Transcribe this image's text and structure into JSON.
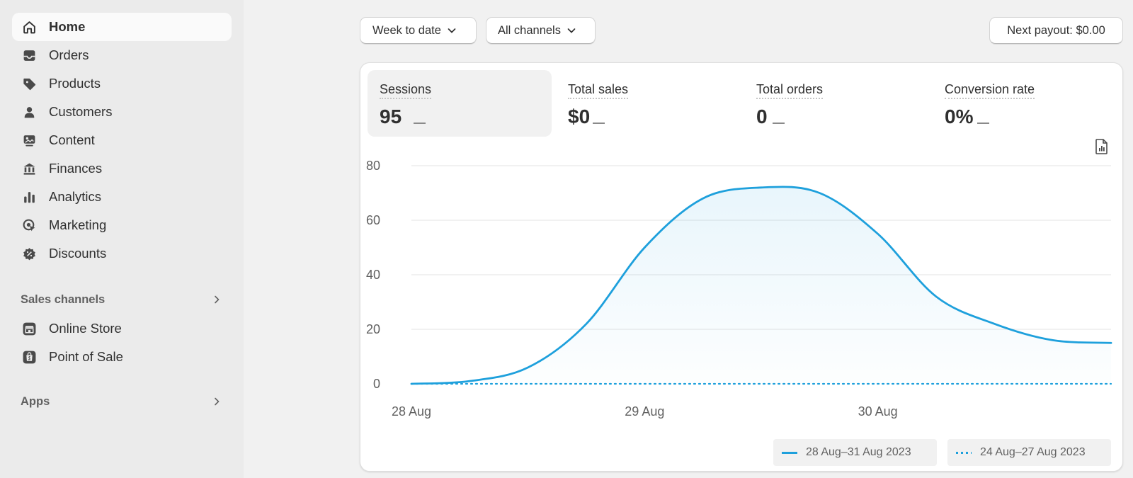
{
  "sidebar": {
    "items": [
      {
        "label": "Home",
        "icon": "home-icon",
        "active": true
      },
      {
        "label": "Orders",
        "icon": "inbox-icon"
      },
      {
        "label": "Products",
        "icon": "tag-icon"
      },
      {
        "label": "Customers",
        "icon": "person-icon"
      },
      {
        "label": "Content",
        "icon": "image-icon"
      },
      {
        "label": "Finances",
        "icon": "bank-icon"
      },
      {
        "label": "Analytics",
        "icon": "bar-chart-icon"
      },
      {
        "label": "Marketing",
        "icon": "target-icon"
      },
      {
        "label": "Discounts",
        "icon": "discount-icon"
      }
    ],
    "sales_channels": {
      "label": "Sales channels",
      "items": [
        {
          "label": "Online Store",
          "icon": "store-icon"
        },
        {
          "label": "Point of Sale",
          "icon": "shopping-bag-icon"
        }
      ]
    },
    "apps": {
      "label": "Apps"
    }
  },
  "toolbar": {
    "date_range": "Week to date",
    "channels": "All channels",
    "payout": "Next payout: $0.00"
  },
  "metrics": [
    {
      "label": "Sessions",
      "value": "95",
      "active": true
    },
    {
      "label": "Total sales",
      "value": "$0"
    },
    {
      "label": "Total orders",
      "value": "0"
    },
    {
      "label": "Conversion rate",
      "value": "0%"
    }
  ],
  "chart_data": {
    "type": "line",
    "title": "Sessions",
    "x_ticks": [
      "28 Aug",
      "29 Aug",
      "30 Aug"
    ],
    "ylim": [
      0,
      80
    ],
    "y_ticks": [
      0,
      20,
      40,
      60,
      80
    ],
    "grid": true,
    "series": [
      {
        "name": "28 Aug–31 Aug 2023",
        "style": "solid",
        "color": "#1ea0dc",
        "x": [
          0,
          0.25,
          0.5,
          0.75,
          1.0,
          1.25,
          1.5,
          1.75,
          2.0,
          2.25,
          2.5,
          2.75,
          3.0
        ],
        "y": [
          0,
          1,
          6,
          22,
          50,
          68,
          72,
          70,
          55,
          32,
          22,
          16,
          15
        ]
      },
      {
        "name": "24 Aug–27 Aug 2023",
        "style": "dotted",
        "color": "#1ea0dc",
        "x": [
          0,
          3.0
        ],
        "y": [
          0,
          0
        ]
      }
    ]
  },
  "legend": [
    {
      "label": "28 Aug–31 Aug 2023",
      "style": "solid"
    },
    {
      "label": "24 Aug–27 Aug 2023",
      "style": "dotted"
    }
  ],
  "colors": {
    "accent": "#1ea0dc",
    "sidebar_bg": "#ebebeb",
    "page_bg": "#f1f1f1"
  }
}
